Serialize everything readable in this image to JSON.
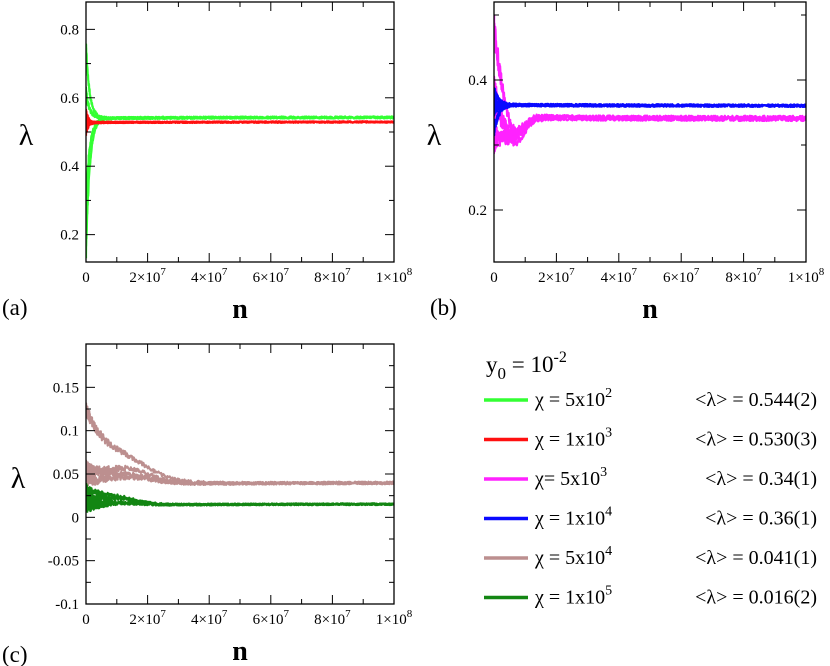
{
  "colors": {
    "green": "#33ff33",
    "red": "#ff1010",
    "magenta": "#ff22ff",
    "blue": "#0a0aff",
    "brown": "#bc8f8f",
    "darkgreen": "#138613"
  },
  "legend": {
    "header": {
      "base": "y",
      "sub": "0",
      "mid": " = 10",
      "sup": "-2"
    },
    "items": [
      {
        "chi": "χ = 5x10",
        "chi_exp": "2",
        "value": "<λ> = 0.544(2)",
        "color": "#33ff33"
      },
      {
        "chi": "χ = 1x10",
        "chi_exp": "3",
        "value": "<λ> = 0.530(3)",
        "color": "#ff1010"
      },
      {
        "chi": "χ= 5x10",
        "chi_exp": "3",
        "value": "<λ> = 0.34(1)",
        "color": "#ff22ff"
      },
      {
        "chi": "χ = 1x10",
        "chi_exp": "4",
        "value": "<λ> = 0.36(1)",
        "color": "#0a0aff"
      },
      {
        "chi": "χ = 5x10",
        "chi_exp": "4",
        "value": "<λ> = 0.041(1)",
        "color": "#bc8f8f"
      },
      {
        "chi": "χ = 1x10",
        "chi_exp": "5",
        "value": "<λ> = 0.016(2)",
        "color": "#138613"
      }
    ]
  },
  "chart_data": [
    {
      "panel": "(a)",
      "type": "line",
      "xlabel": "n",
      "ylabel": "λ",
      "xlim": [
        0,
        100000000
      ],
      "ylim": [
        0.12,
        0.88
      ],
      "yticks": [
        0.2,
        0.4,
        0.6,
        0.8
      ],
      "ytick_labels": [
        "0.2",
        "0.4",
        "0.6",
        "0.8"
      ],
      "x_minor_step": 10000000,
      "y_minor_step": 0.1,
      "series": [
        {
          "name": "χ = 5x10^2",
          "color": "green",
          "value": 0.544,
          "start": [
            0.75,
            0.15,
            0.62,
            0.3
          ],
          "decay": 1200000,
          "noise": 0.006,
          "dip": 0
        },
        {
          "name": "χ = 1x10^3",
          "color": "red",
          "value": 0.53,
          "start": [
            0.56,
            0.5,
            0.54,
            0.52
          ],
          "decay": 800000,
          "noise": 0.004,
          "dip": 0
        }
      ]
    },
    {
      "panel": "(b)",
      "type": "line",
      "xlabel": "n",
      "ylabel": "λ",
      "xlim": [
        0,
        100000000
      ],
      "ylim": [
        0.12,
        0.52
      ],
      "yticks": [
        0.2,
        0.4
      ],
      "ytick_labels": [
        "0.2",
        "0.4"
      ],
      "x_minor_step": 10000000,
      "y_minor_step": 0.1,
      "series": [
        {
          "name": "χ = 5x10^3",
          "color": "magenta",
          "value": 0.34,
          "start": [
            0.49,
            0.31,
            0.4,
            0.36
          ],
          "decay": 4000000,
          "noise": 0.008,
          "dip": -0.05
        },
        {
          "name": "χ = 1x10^4",
          "color": "blue",
          "value": 0.36,
          "start": [
            0.38,
            0.32,
            0.36,
            0.35
          ],
          "decay": 1500000,
          "noise": 0.004,
          "dip": 0
        }
      ]
    },
    {
      "panel": "(c)",
      "type": "line",
      "xlabel": "n",
      "ylabel": "λ",
      "xlim": [
        0,
        100000000
      ],
      "ylim": [
        -0.1,
        0.2
      ],
      "yticks": [
        -0.1,
        -0.05,
        0,
        0.05,
        0.1,
        0.15
      ],
      "ytick_labels": [
        "-0.1",
        "-0.05",
        "0",
        "0.05",
        "0.1",
        "0.15"
      ],
      "x_minor_step": 10000000,
      "y_minor_step": 0.025,
      "series": [
        {
          "name": "χ = 5x10^4",
          "color": "brown",
          "value": 0.041,
          "start": [
            0.125,
            0.06,
            0.055,
            0.045
          ],
          "decay": 9000000,
          "noise": 0.003,
          "dip": 0.015
        },
        {
          "name": "χ = 1x10^5",
          "color": "darkgreen",
          "value": 0.016,
          "start": [
            0.035,
            0.012,
            0.025,
            0.018
          ],
          "decay": 7000000,
          "noise": 0.002,
          "dip": 0.006
        }
      ]
    }
  ],
  "x_axis": {
    "ticks": [
      0,
      20000000,
      40000000,
      60000000,
      80000000,
      100000000
    ],
    "labels": [
      {
        "base": "0",
        "exp": ""
      },
      {
        "base": "2×10",
        "exp": "7"
      },
      {
        "base": "4×10",
        "exp": "7"
      },
      {
        "base": "6×10",
        "exp": "7"
      },
      {
        "base": "8×10",
        "exp": "7"
      },
      {
        "base": "1×10",
        "exp": "8"
      }
    ]
  }
}
